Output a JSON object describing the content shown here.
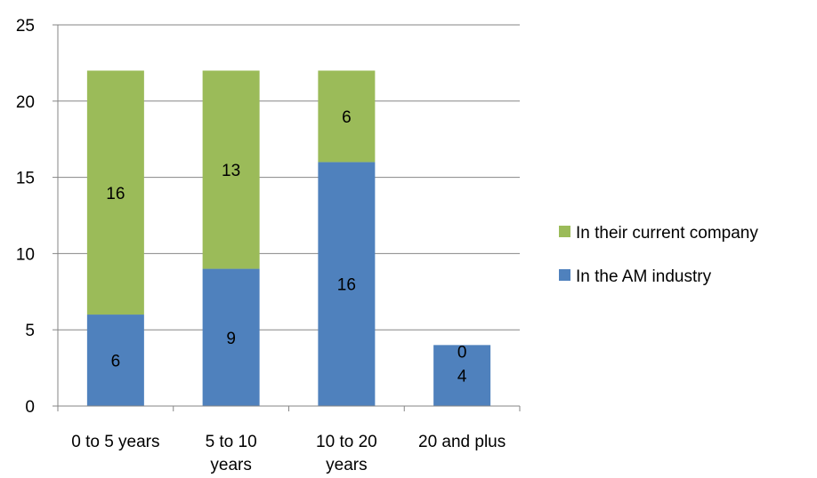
{
  "chart_data": {
    "type": "bar",
    "stacked": true,
    "categories": [
      [
        "0 to 5 years"
      ],
      [
        "5 to 10",
        "years"
      ],
      [
        "10 to 20",
        "years"
      ],
      [
        "20 and plus"
      ]
    ],
    "series": [
      {
        "name": "In the AM industry",
        "values": [
          6,
          9,
          16,
          4
        ],
        "color": "#4F81BD"
      },
      {
        "name": "In their current company",
        "values": [
          16,
          13,
          6,
          0
        ],
        "color": "#9BBB59"
      }
    ],
    "ylim": [
      0,
      25
    ],
    "yticks": [
      0,
      5,
      10,
      15,
      20,
      25
    ],
    "grid": true,
    "legend_position": "right",
    "title": "",
    "xlabel": "",
    "ylabel": ""
  }
}
